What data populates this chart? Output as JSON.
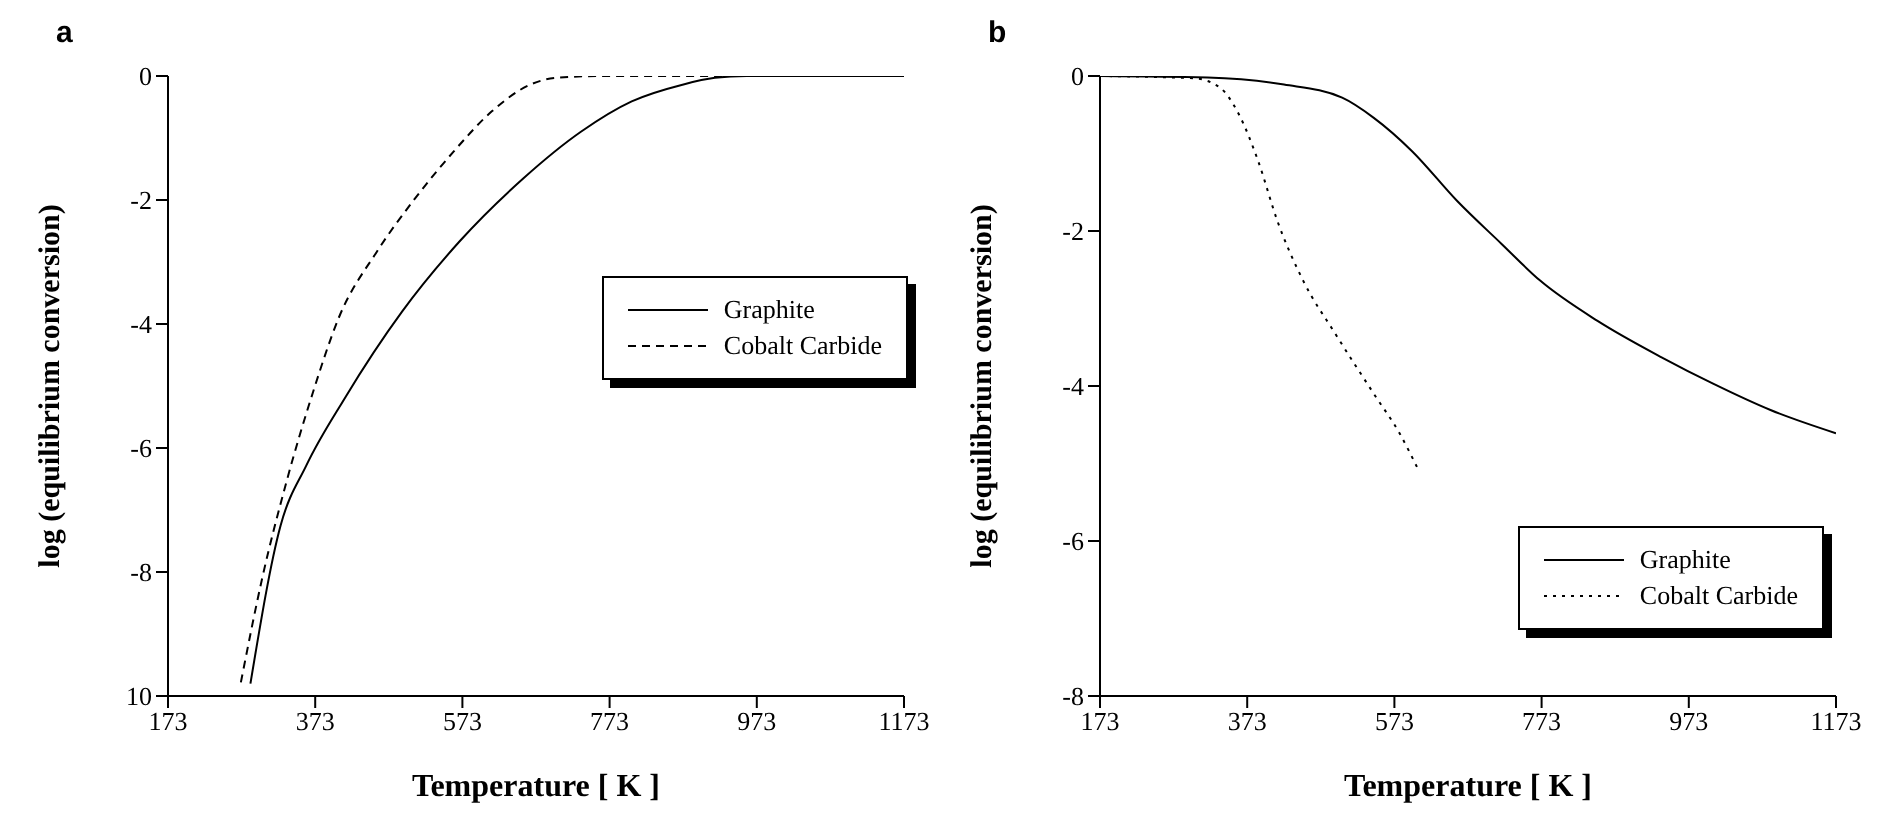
{
  "chart_data": [
    {
      "type": "line",
      "title": "a",
      "xlabel": "Temperature  [ K ]",
      "ylabel": "log (equilibrium conversion)",
      "xlim": [
        173,
        1173
      ],
      "xticks": [
        173,
        373,
        573,
        773,
        973,
        1173
      ],
      "ylim": [
        -10,
        0
      ],
      "yticks": [
        0,
        -2,
        -4,
        -6,
        -8,
        {
          "value": -10,
          "label": "10"
        }
      ],
      "legend": "right",
      "marker": "none",
      "series": [
        {
          "name": "Graphite",
          "color": "#000000",
          "line_style": "solid",
          "x": [
            285,
            326,
            361,
            413,
            491,
            569,
            656,
            734,
            803,
            872,
            916,
            959,
            1173
          ],
          "values": [
            -9.8,
            -7.25,
            -6.28,
            -5.2,
            -3.8,
            -2.67,
            -1.65,
            -0.9,
            -0.41,
            -0.14,
            -0.03,
            0,
            0
          ]
        },
        {
          "name": "Cobalt Carbide",
          "color": "#000000",
          "line_style": "dashed",
          "x": [
            272,
            301,
            335,
            370,
            405,
            457,
            509,
            561,
            613,
            665,
            700,
            760,
            933
          ],
          "values": [
            -9.78,
            -8.1,
            -6.5,
            -5.1,
            -3.9,
            -2.83,
            -1.97,
            -1.22,
            -0.57,
            -0.14,
            -0.03,
            0,
            0
          ]
        }
      ]
    },
    {
      "type": "line",
      "title": "b",
      "xlabel": "Temperature  [ K ]",
      "ylabel": "log (equilibrium conversion)",
      "xlim": [
        173,
        1173
      ],
      "xticks": [
        173,
        373,
        573,
        773,
        973,
        1173
      ],
      "ylim": [
        -8,
        0
      ],
      "yticks": [
        0,
        -2,
        -4,
        -6,
        -8
      ],
      "legend": "bottom right",
      "marker": "none",
      "series": [
        {
          "name": "Graphite",
          "color": "#000000",
          "line_style": "solid",
          "x": [
            173,
            319,
            423,
            502,
            545,
            597,
            658,
            719,
            771,
            849,
            936,
            1006,
            1084,
            1173
          ],
          "values": [
            0,
            -0.02,
            -0.11,
            -0.28,
            -0.54,
            -0.97,
            -1.61,
            -2.17,
            -2.64,
            -3.16,
            -3.63,
            -3.97,
            -4.31,
            -4.61
          ]
        },
        {
          "name": "Cobalt Carbide",
          "color": "#000000",
          "line_style": "dotted",
          "x": [
            173,
            301,
            336,
            362,
            388,
            414,
            449,
            493,
            545,
            580,
            606
          ],
          "values": [
            0,
            -0.03,
            -0.15,
            -0.5,
            -1.1,
            -1.87,
            -2.64,
            -3.33,
            -4.1,
            -4.61,
            -5.09
          ]
        }
      ]
    }
  ]
}
